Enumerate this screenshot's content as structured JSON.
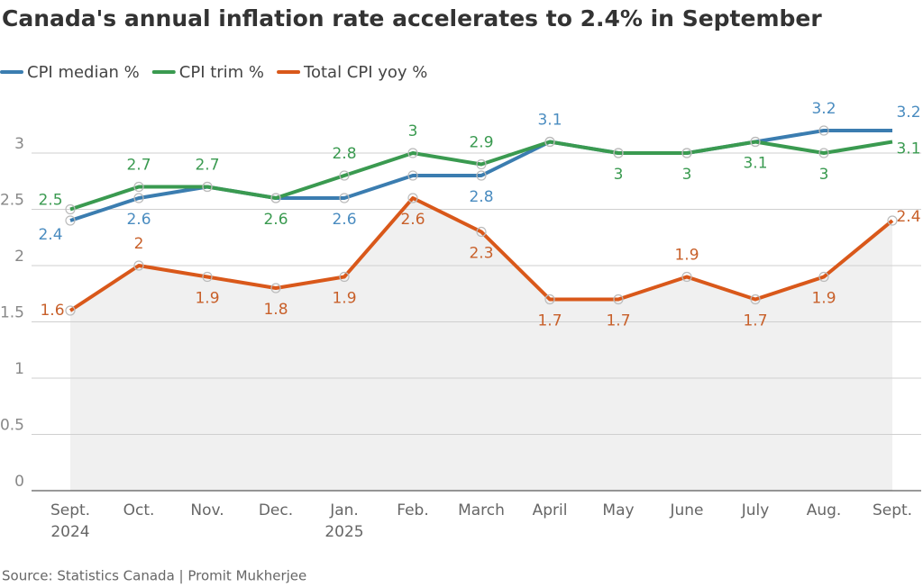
{
  "chart_data": {
    "type": "line",
    "title": "Canada's annual inflation rate accelerates to 2.4% in September",
    "source": "Source: Statistics Canada | Promit Mukherjee",
    "categories": [
      "Sept.\n2024",
      "Oct.",
      "Nov.",
      "Dec.",
      "Jan.\n2025",
      "Feb.",
      "March",
      "April",
      "May",
      "June",
      "July",
      "Aug.",
      "Sept."
    ],
    "series": [
      {
        "name": "CPI median %",
        "color": "#3b7db0",
        "values": [
          2.4,
          2.6,
          2.7,
          2.6,
          2.6,
          2.8,
          2.8,
          3.1,
          3,
          3,
          3.1,
          3.2,
          3.2
        ],
        "value_labels": [
          "2.4",
          "2.6",
          null,
          null,
          "2.6",
          null,
          "2.8",
          "3.1",
          null,
          null,
          null,
          "3.2",
          "3.2"
        ]
      },
      {
        "name": "CPI trim %",
        "color": "#3a9a50",
        "values": [
          2.5,
          2.7,
          2.7,
          2.6,
          2.8,
          3,
          2.9,
          3.1,
          3,
          3,
          3.1,
          3,
          3.1
        ],
        "value_labels": [
          "2.5",
          "2.7",
          "2.7",
          "2.6",
          "2.8",
          "3",
          "2.9",
          null,
          "3",
          "3",
          "3.1",
          "3",
          "3.1"
        ]
      },
      {
        "name": "Total CPI yoy %",
        "color": "#d9581a",
        "values": [
          1.6,
          2,
          1.9,
          1.8,
          1.9,
          2.6,
          2.3,
          1.7,
          1.7,
          1.9,
          1.7,
          1.9,
          2.4
        ],
        "value_labels": [
          "1.6",
          "2",
          "1.9",
          "1.8",
          "1.9",
          "2.6",
          "2.3",
          "1.7",
          "1.7",
          "1.9",
          "1.7",
          "1.9",
          "2.4"
        ]
      }
    ],
    "ylim": [
      0,
      3.5
    ],
    "yticks": [
      0,
      0.5,
      1,
      1.5,
      2,
      2.5,
      3
    ],
    "grid": true,
    "shade_series": 2
  }
}
